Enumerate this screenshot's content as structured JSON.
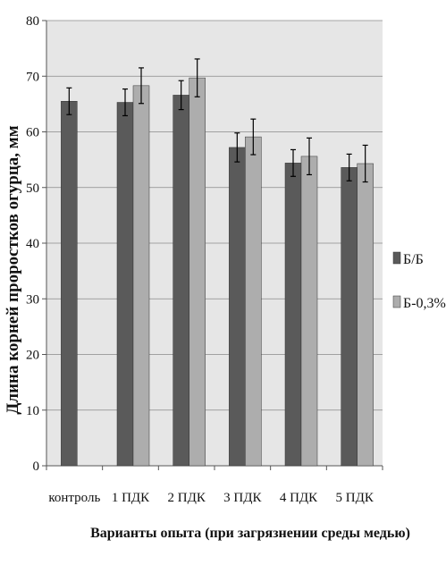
{
  "chart_data": {
    "type": "bar",
    "categories": [
      "контроль",
      "1 ПДК",
      "2 ПДК",
      "3 ПДК",
      "4 ПДК",
      "5 ПДК"
    ],
    "series": [
      {
        "name": "Б/Б",
        "color": "#5a5a5a",
        "values": [
          65.5,
          65.3,
          66.6,
          57.2,
          54.4,
          53.6
        ],
        "errors": [
          2.4,
          2.4,
          2.6,
          2.6,
          2.4,
          2.4
        ]
      },
      {
        "name": "Б-0,3%",
        "color": "#adadad",
        "values": [
          null,
          68.3,
          69.7,
          59.1,
          55.6,
          54.3
        ],
        "errors": [
          null,
          3.2,
          3.4,
          3.2,
          3.3,
          3.3
        ]
      }
    ],
    "ylim": [
      0,
      80
    ],
    "yticks": [
      "0",
      "10",
      "20",
      "30",
      "40",
      "50",
      "60",
      "70",
      "80"
    ],
    "ylabel": "Длина корней проростков огурца, мм",
    "xlabel": "Варианты опыта (при загрязнении среды медью)",
    "grid": true,
    "legend_position": "right"
  }
}
